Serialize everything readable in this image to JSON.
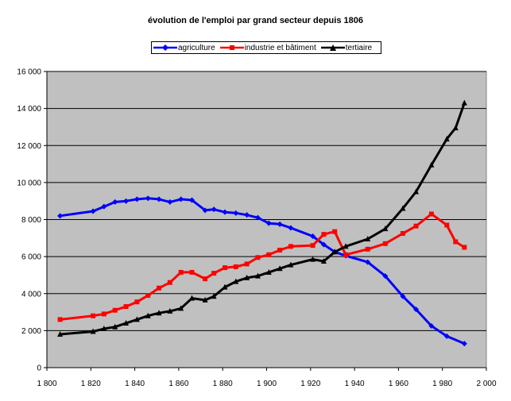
{
  "chart_data": {
    "type": "line",
    "title": "évolution de l'emploi par grand secteur depuis 1806",
    "xlabel": "",
    "ylabel": "",
    "xlim": [
      1800,
      2000
    ],
    "ylim": [
      0,
      16000
    ],
    "x_ticks": [
      "1 800",
      "1 820",
      "1 840",
      "1 860",
      "1 880",
      "1 900",
      "1 920",
      "1 940",
      "1 960",
      "1 980",
      "2 000"
    ],
    "y_ticks": [
      "0",
      "2 000",
      "4 000",
      "6 000",
      "8 000",
      "10 000",
      "12 000",
      "14 000",
      "16 000"
    ],
    "grid": "horizontal",
    "legend_position": "top",
    "plot_background": "#c0c0c0",
    "series": [
      {
        "name": "agriculture",
        "color": "#0000ff",
        "marker": "diamond",
        "x": [
          1806,
          1821,
          1826,
          1831,
          1836,
          1841,
          1846,
          1851,
          1856,
          1861,
          1866,
          1872,
          1876,
          1881,
          1886,
          1891,
          1896,
          1901,
          1906,
          1911,
          1921,
          1926,
          1931,
          1936,
          1946,
          1954,
          1962,
          1968,
          1975,
          1982,
          1990
        ],
        "values": [
          8200,
          8450,
          8700,
          8950,
          9000,
          9100,
          9150,
          9100,
          8950,
          9100,
          9050,
          8500,
          8550,
          8400,
          8350,
          8250,
          8100,
          7800,
          7750,
          7550,
          7100,
          6650,
          6250,
          6050,
          5700,
          4950,
          3850,
          3150,
          2250,
          1700,
          1300
        ]
      },
      {
        "name": "industrie et bâtiment",
        "color": "#ff0000",
        "marker": "square",
        "x": [
          1806,
          1821,
          1826,
          1831,
          1836,
          1841,
          1846,
          1851,
          1856,
          1861,
          1866,
          1872,
          1876,
          1881,
          1886,
          1891,
          1896,
          1901,
          1906,
          1911,
          1921,
          1926,
          1931,
          1936,
          1946,
          1954,
          1962,
          1968,
          1975,
          1982,
          1986,
          1990
        ],
        "values": [
          2600,
          2800,
          2900,
          3100,
          3300,
          3550,
          3900,
          4300,
          4600,
          5150,
          5150,
          4800,
          5100,
          5400,
          5450,
          5600,
          5950,
          6100,
          6350,
          6550,
          6600,
          7200,
          7350,
          6100,
          6400,
          6700,
          7250,
          7650,
          8300,
          7700,
          6800,
          6500
        ]
      },
      {
        "name": "tertiaire",
        "color": "#000000",
        "marker": "triangle",
        "x": [
          1806,
          1821,
          1826,
          1831,
          1836,
          1841,
          1846,
          1851,
          1856,
          1861,
          1866,
          1872,
          1876,
          1881,
          1886,
          1891,
          1896,
          1901,
          1906,
          1911,
          1921,
          1926,
          1931,
          1936,
          1946,
          1954,
          1962,
          1968,
          1975,
          1982,
          1986,
          1990
        ],
        "values": [
          1800,
          1950,
          2100,
          2200,
          2400,
          2600,
          2800,
          2950,
          3050,
          3200,
          3750,
          3650,
          3850,
          4350,
          4650,
          4850,
          4950,
          5150,
          5350,
          5550,
          5850,
          5750,
          6250,
          6550,
          6950,
          7500,
          8600,
          9500,
          10950,
          12350,
          12950,
          14300
        ]
      }
    ]
  }
}
